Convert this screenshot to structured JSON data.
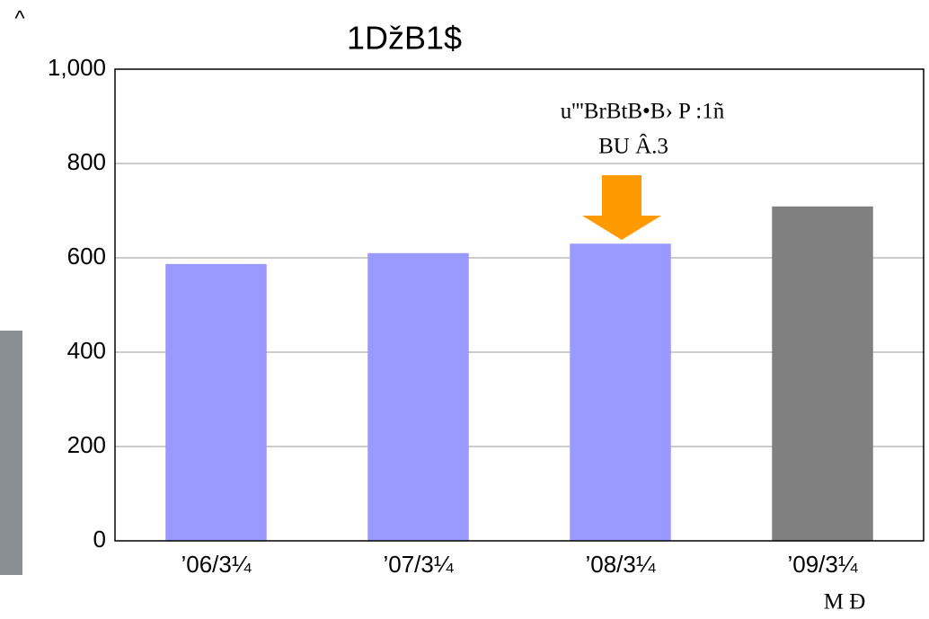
{
  "chart_data": {
    "type": "bar",
    "title": "1ǅB1$",
    "corner_mark": "^",
    "annotation": [
      "u'''BrBtB•B›   P   :1ñ",
      "BU   Â.3"
    ],
    "footnote": "M   Ð",
    "categories": [
      "’06/3¼",
      "’07/3¼",
      "’08/3¼",
      "’09/3¼"
    ],
    "values": [
      587,
      610,
      630,
      709
    ],
    "colors": [
      "#9999ff",
      "#9999ff",
      "#9999ff",
      "#808080"
    ],
    "ylim": [
      0,
      1000
    ],
    "yticks": [
      0,
      200,
      400,
      600,
      800,
      {
        "value": 1000,
        "label": "1,000"
      }
    ],
    "grid": true
  }
}
